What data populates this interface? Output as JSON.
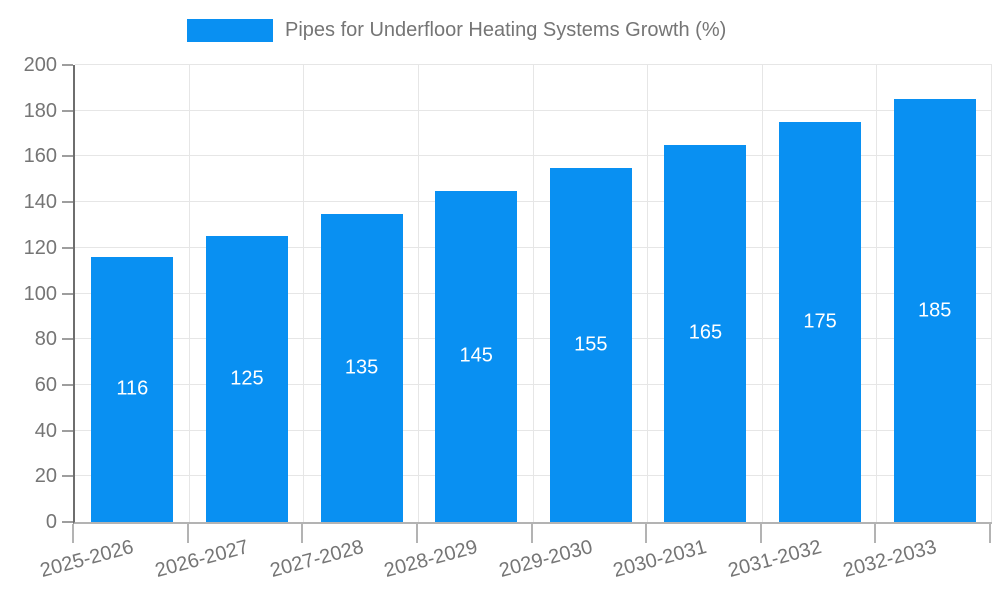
{
  "chart_data": {
    "type": "bar",
    "title": "Pipes for Underfloor Heating Systems Growth (%)",
    "categories": [
      "2025-2026",
      "2026-2027",
      "2027-2028",
      "2028-2029",
      "2029-2030",
      "2030-2031",
      "2031-2032",
      "2032-2033"
    ],
    "values": [
      116,
      125,
      135,
      145,
      155,
      165,
      175,
      185
    ],
    "xlabel": "",
    "ylabel": "",
    "ylim": [
      0,
      200
    ],
    "ytick_step": 20,
    "grid": true,
    "legend_position": "top",
    "bar_labels_inside": true
  },
  "colors": {
    "bar": "#0990f2",
    "grid": "#e6e6e6",
    "axis_y": "#6e6e6e",
    "axis_x": "#b3b3b3",
    "tick": "#9e9e9e",
    "text": "#757575",
    "value_label": "#ffffff",
    "background": "#ffffff"
  }
}
